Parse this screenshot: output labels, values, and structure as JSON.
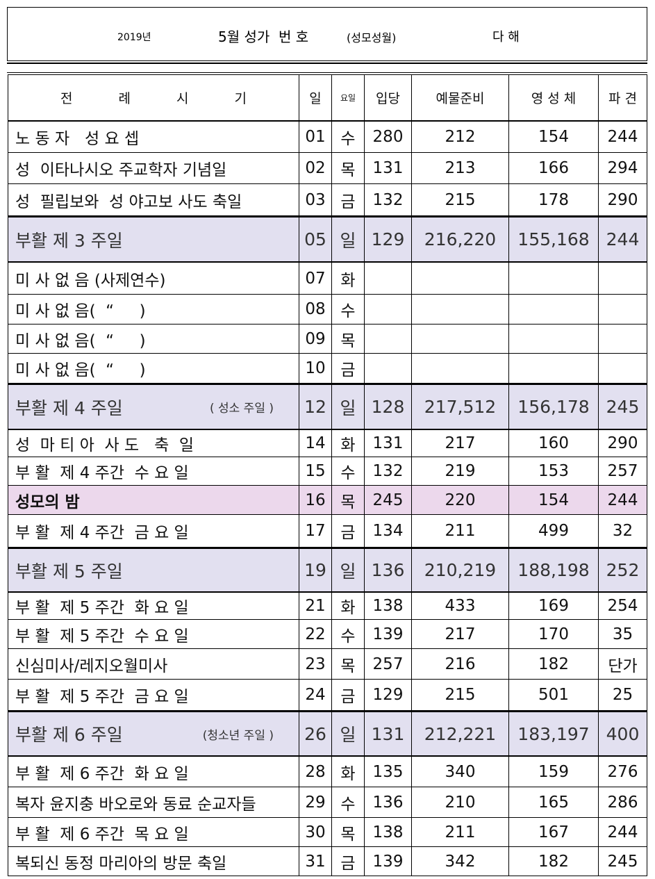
{
  "header": {
    "year": "2019년",
    "title": "5월 성가  번 호",
    "subtitle": "(성모성월)",
    "cycle": "다 해"
  },
  "table": {
    "columns": [
      "전 례 시 기",
      "일",
      "요일",
      "입당",
      "예물준비",
      "영 성 체",
      "파 견"
    ],
    "rows": [
      {
        "name": "노 동 자   성 요 셉",
        "cells": [
          "01",
          "수",
          "280",
          "212",
          "154",
          "244"
        ]
      },
      {
        "name": "성  이타나시오 주교학자 기념일",
        "cells": [
          "02",
          "목",
          "131",
          "213",
          "166",
          "294"
        ]
      },
      {
        "name": "성  필립보와  성 야고보 사도 축일",
        "cells": [
          "03",
          "금",
          "132",
          "215",
          "178",
          "290"
        ]
      },
      {
        "name": "부활 제 3 주일",
        "cells": [
          "05",
          "일",
          "129",
          "216,220",
          "155,168",
          "244"
        ]
      },
      {
        "name": "미 사 없 음 (사제연수)",
        "cells": [
          "07",
          "화",
          null,
          null,
          null,
          null
        ]
      },
      {
        "name": "미 사 없 음(  “     )",
        "cells": [
          "08",
          "수",
          null,
          null,
          null,
          null
        ]
      },
      {
        "name": "미 사 없 음(  “     )",
        "cells": [
          "09",
          "목",
          null,
          null,
          null,
          null
        ]
      },
      {
        "name": "미 사 없 음(  “     )",
        "cells": [
          "10",
          "금",
          null,
          null,
          null,
          null
        ]
      },
      {
        "name": "부활 제 4 주일",
        "note": "( 성소 주일 )",
        "cells": [
          "12",
          "일",
          "128",
          "217,512",
          "156,178",
          "245"
        ]
      },
      {
        "name": "성  마 티 아  사 도   축  일",
        "cells": [
          "14",
          "화",
          "131",
          "217",
          "160",
          "290"
        ]
      },
      {
        "name": "부 활  제 4 주간  수 요 일",
        "cells": [
          "15",
          "수",
          "132",
          "219",
          "153",
          "257"
        ]
      },
      {
        "name": "성모의 밤",
        "cells": [
          "16",
          "목",
          "245",
          "220",
          "154",
          "244"
        ]
      },
      {
        "name": "부 활  제 4 주간  금 요 일",
        "cells": [
          "17",
          "금",
          "134",
          "211",
          "499",
          "32"
        ]
      },
      {
        "name": "부활 제 5 주일",
        "cells": [
          "19",
          "일",
          "136",
          "210,219",
          "188,198",
          "252"
        ]
      },
      {
        "name": "부 활  제 5 주간  화 요 일",
        "cells": [
          "21",
          "화",
          "138",
          "433",
          "169",
          "254"
        ]
      },
      {
        "name": "부 활  제 5 주간  수 요 일",
        "cells": [
          "22",
          "수",
          "139",
          "217",
          "170",
          "35"
        ]
      },
      {
        "name": "신심미사/레지오월미사",
        "cells": [
          "23",
          "목",
          "257",
          "216",
          "182",
          "단가"
        ]
      },
      {
        "name": "부 활  제 5 주간  금 요 일",
        "cells": [
          "24",
          "금",
          "129",
          "215",
          "501",
          "25"
        ]
      },
      {
        "name": "부활 제 6 주일",
        "note": "(청소년 주일 )",
        "cells": [
          "26",
          "일",
          "131",
          "212,221",
          "183,197",
          "400"
        ]
      },
      {
        "name": "부 활  제 6 주간  화 요 일",
        "cells": [
          "28",
          "화",
          "135",
          "340",
          "159",
          "276"
        ]
      },
      {
        "name": "복자 윤지충 바오로와 동료 순교자들",
        "cells": [
          "29",
          "수",
          "136",
          "210",
          "165",
          "286"
        ]
      },
      {
        "name": "부 활  제 6 주간  목 요 일",
        "cells": [
          "30",
          "목",
          "138",
          "211",
          "167",
          "244"
        ]
      },
      {
        "name": "복되신 동정 마리아의 방문 축일",
        "cells": [
          "31",
          "금",
          "139",
          "342",
          "182",
          "245"
        ]
      }
    ]
  }
}
